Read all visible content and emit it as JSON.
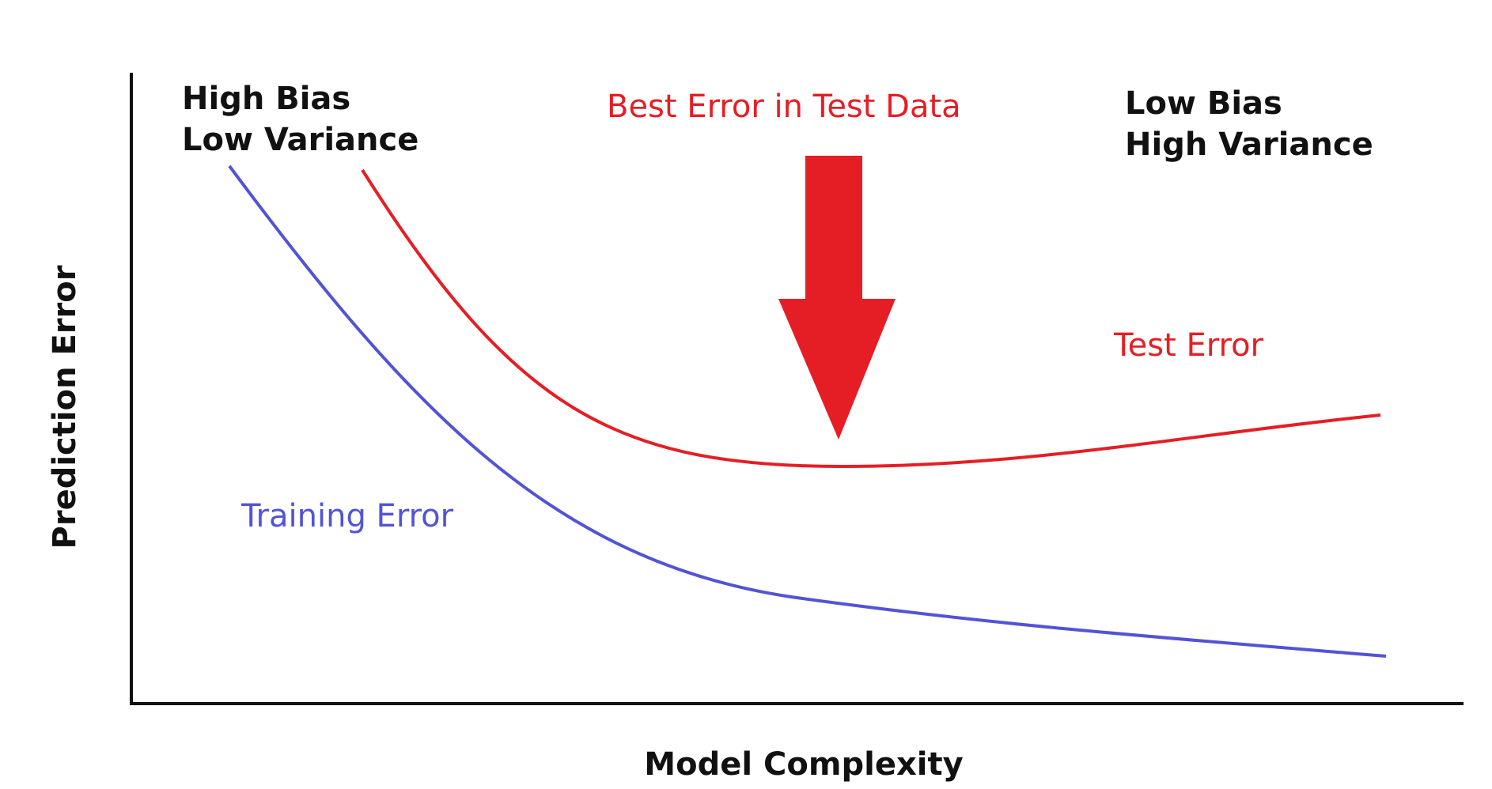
{
  "chart_data": {
    "type": "line",
    "title": "",
    "xlabel": "Model Complexity",
    "ylabel": "Prediction Error",
    "grid": false,
    "series": [
      {
        "name": "Training Error",
        "color": "#5353d6"
      },
      {
        "name": "Test Error",
        "color": "#e51e25"
      }
    ],
    "annotations": {
      "left_regime": [
        "High Bias",
        "Low Variance"
      ],
      "right_regime": [
        "Low Bias",
        "High Variance"
      ],
      "best_point": "Best Error in Test Data"
    },
    "arrow_color": "#e51e25"
  }
}
